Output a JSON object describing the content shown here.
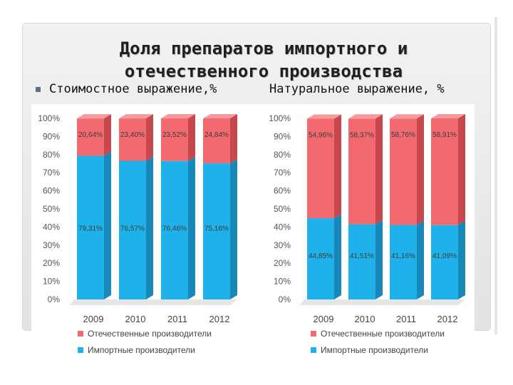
{
  "slide": {
    "title_line1": "Доля препаратов импортного и",
    "title_line2": "отечественного производства",
    "subtitle_cost": "Стоимостное выражение,%",
    "subtitle_natural": "Натуральное выражение, %"
  },
  "colors": {
    "domestic": "#f26a6f",
    "domestic_side": "#c8474d",
    "imported": "#1fb2ea",
    "imported_side": "#1788b8",
    "label": "#3b3b3b"
  },
  "chart_data": [
    {
      "type": "bar",
      "stacked": true,
      "title": "Стоимостное выражение,%",
      "categories": [
        "2009",
        "2010",
        "2011",
        "2012"
      ],
      "ylim": [
        0,
        100
      ],
      "yticks": [
        "0%",
        "10%",
        "20%",
        "30%",
        "40%",
        "50%",
        "60%",
        "70%",
        "80%",
        "90%",
        "100%"
      ],
      "legend_position": "bottom",
      "series": [
        {
          "name": "Импортные производители",
          "color_key": "imported",
          "values": [
            79.31,
            76.57,
            76.46,
            75.16
          ],
          "labels": [
            "79,31%",
            "76,57%",
            "76,46%",
            "75,16%"
          ]
        },
        {
          "name": "Отечественные производители",
          "color_key": "domestic",
          "values": [
            20.64,
            23.4,
            23.52,
            24.84
          ],
          "labels": [
            "20,64%",
            "23,40%",
            "23,52%",
            "24,84%"
          ]
        }
      ]
    },
    {
      "type": "bar",
      "stacked": true,
      "title": "Натуральное выражение, %",
      "categories": [
        "2009",
        "2010",
        "2011",
        "2012"
      ],
      "ylim": [
        0,
        100
      ],
      "yticks": [
        "0%",
        "10%",
        "20%",
        "30%",
        "40%",
        "50%",
        "60%",
        "70%",
        "80%",
        "90%",
        "100%"
      ],
      "legend_position": "bottom",
      "series": [
        {
          "name": "Импортные производители",
          "color_key": "imported",
          "values": [
            44.85,
            41.51,
            41.16,
            41.09
          ],
          "labels": [
            "44,85%",
            "41,51%",
            "41,16%",
            "41,09%"
          ]
        },
        {
          "name": "Отечественные производители",
          "color_key": "domestic",
          "values": [
            54.96,
            58.37,
            58.76,
            58.91
          ],
          "labels": [
            "54,96%",
            "58,37%",
            "58,76%",
            "58,91%"
          ]
        }
      ]
    }
  ]
}
